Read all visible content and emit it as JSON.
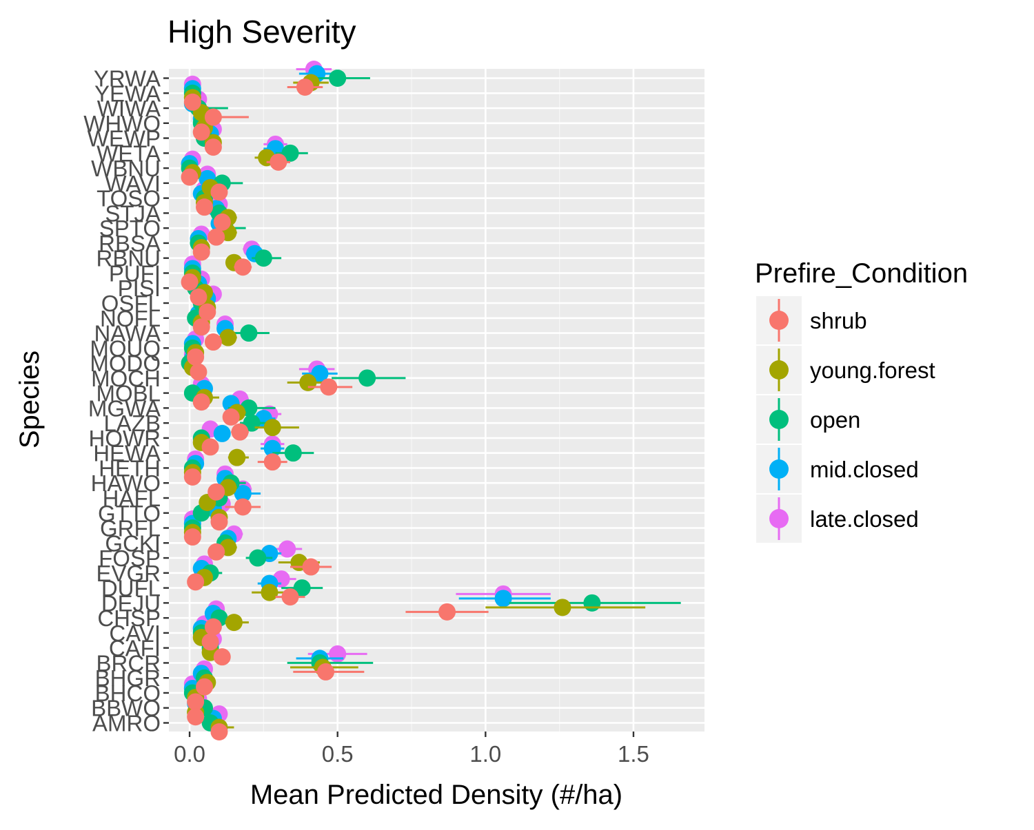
{
  "chart_data": {
    "type": "scatter",
    "title": "High Severity",
    "xlabel": "Mean Predicted Density (#/ha)",
    "ylabel": "Species",
    "xlim": [
      -0.07,
      1.74
    ],
    "x_ticks": [
      0.0,
      0.5,
      1.0,
      1.5
    ],
    "x_tick_labels": [
      "0.0",
      "0.5",
      "1.0",
      "1.5"
    ],
    "grid": true,
    "legend": {
      "title": "Prefire_Condition",
      "position": "right"
    },
    "categories": [
      "YRWA",
      "YEWA",
      "WIWA",
      "WHWO",
      "WEWP",
      "WETA",
      "WBNU",
      "WAVI",
      "TOSO",
      "STJA",
      "SPTO",
      "RBSA",
      "RBNU",
      "PUFI",
      "PISI",
      "OSFL",
      "NOFL",
      "NAWA",
      "MOUQ",
      "MODO",
      "MOCH",
      "MOBL",
      "MGWA",
      "LAZB",
      "HOWR",
      "HEWA",
      "HETH",
      "HAWO",
      "HAFL",
      "GTTO",
      "GRFL",
      "GCKI",
      "FOSP",
      "EVGR",
      "DUFL",
      "DEJU",
      "CHSP",
      "CAVI",
      "CAFI",
      "BRCR",
      "BHGR",
      "BHCO",
      "BBWO",
      "AMRO"
    ],
    "series": [
      {
        "name": "late.closed",
        "color": "#E76BF3",
        "values": [
          0.42,
          0.01,
          0.03,
          0.05,
          0.08,
          0.29,
          0.01,
          0.06,
          0.05,
          0.1,
          0.11,
          0.04,
          0.21,
          0.01,
          0.04,
          0.08,
          0.04,
          0.12,
          0.02,
          0.01,
          0.43,
          0.04,
          0.17,
          0.27,
          0.07,
          0.28,
          0.02,
          0.12,
          0.18,
          0.11,
          0.01,
          0.15,
          0.33,
          0.05,
          0.31,
          1.06,
          0.09,
          0.05,
          0.08,
          0.5,
          0.05,
          0.01,
          0.03,
          0.1
        ],
        "lower": [
          0.36,
          0.0,
          0.02,
          0.04,
          0.07,
          0.25,
          0.0,
          0.05,
          0.04,
          0.08,
          0.09,
          0.03,
          0.18,
          0.0,
          0.03,
          0.07,
          0.03,
          0.1,
          0.01,
          0.0,
          0.37,
          0.03,
          0.14,
          0.23,
          0.06,
          0.24,
          0.01,
          0.1,
          0.15,
          0.09,
          0.0,
          0.12,
          0.28,
          0.04,
          0.26,
          0.9,
          0.07,
          0.04,
          0.07,
          0.4,
          0.04,
          0.0,
          0.02,
          0.08
        ],
        "upper": [
          0.48,
          0.02,
          0.04,
          0.06,
          0.09,
          0.33,
          0.02,
          0.07,
          0.06,
          0.12,
          0.13,
          0.05,
          0.24,
          0.02,
          0.05,
          0.09,
          0.05,
          0.14,
          0.03,
          0.02,
          0.49,
          0.05,
          0.2,
          0.31,
          0.08,
          0.32,
          0.03,
          0.14,
          0.21,
          0.13,
          0.02,
          0.18,
          0.38,
          0.06,
          0.36,
          1.22,
          0.11,
          0.06,
          0.09,
          0.6,
          0.06,
          0.02,
          0.04,
          0.12
        ]
      },
      {
        "name": "mid.closed",
        "color": "#00B0F6",
        "values": [
          0.43,
          0.01,
          0.01,
          0.04,
          0.07,
          0.29,
          0.0,
          0.06,
          0.04,
          0.09,
          0.1,
          0.03,
          0.22,
          0.01,
          0.03,
          0.06,
          0.03,
          0.12,
          0.01,
          0.01,
          0.44,
          0.05,
          0.14,
          0.25,
          0.11,
          0.28,
          0.02,
          0.12,
          0.18,
          0.08,
          0.01,
          0.13,
          0.27,
          0.04,
          0.27,
          1.06,
          0.08,
          0.04,
          0.07,
          0.44,
          0.04,
          0.01,
          0.02,
          0.08
        ],
        "lower": [
          0.37,
          0.0,
          0.0,
          0.03,
          0.06,
          0.25,
          0.0,
          0.05,
          0.03,
          0.07,
          0.08,
          0.02,
          0.19,
          0.0,
          0.02,
          0.05,
          0.02,
          0.1,
          0.0,
          0.0,
          0.38,
          0.04,
          0.12,
          0.21,
          0.09,
          0.24,
          0.01,
          0.1,
          0.15,
          0.07,
          0.0,
          0.11,
          0.23,
          0.03,
          0.23,
          0.91,
          0.07,
          0.03,
          0.06,
          0.36,
          0.03,
          0.0,
          0.01,
          0.07
        ],
        "upper": [
          0.49,
          0.02,
          0.02,
          0.05,
          0.08,
          0.33,
          0.01,
          0.07,
          0.05,
          0.11,
          0.12,
          0.04,
          0.25,
          0.02,
          0.04,
          0.07,
          0.04,
          0.14,
          0.02,
          0.02,
          0.5,
          0.06,
          0.16,
          0.29,
          0.13,
          0.32,
          0.03,
          0.14,
          0.24,
          0.09,
          0.02,
          0.15,
          0.31,
          0.05,
          0.31,
          1.22,
          0.09,
          0.05,
          0.08,
          0.52,
          0.05,
          0.02,
          0.03,
          0.09
        ]
      },
      {
        "name": "open",
        "color": "#00BF7D",
        "values": [
          0.5,
          0.01,
          0.03,
          0.04,
          0.05,
          0.34,
          0.0,
          0.11,
          0.05,
          0.1,
          0.12,
          0.03,
          0.25,
          0.01,
          0.02,
          0.04,
          0.02,
          0.2,
          0.01,
          0.0,
          0.6,
          0.01,
          0.2,
          0.21,
          0.04,
          0.35,
          0.01,
          0.14,
          0.1,
          0.04,
          0.01,
          0.12,
          0.23,
          0.07,
          0.38,
          1.36,
          0.1,
          0.04,
          0.07,
          0.44,
          0.05,
          0.01,
          0.05,
          0.07
        ],
        "lower": [
          0.41,
          0.0,
          0.02,
          0.03,
          0.04,
          0.29,
          0.0,
          0.09,
          0.04,
          0.08,
          0.1,
          0.02,
          0.21,
          0.0,
          0.01,
          0.03,
          0.01,
          0.15,
          0.0,
          0.0,
          0.48,
          0.0,
          0.13,
          0.17,
          0.03,
          0.28,
          0.0,
          0.11,
          0.08,
          0.03,
          0.0,
          0.1,
          0.19,
          0.05,
          0.31,
          1.08,
          0.08,
          0.03,
          0.06,
          0.33,
          0.04,
          0.0,
          0.04,
          0.06
        ],
        "upper": [
          0.61,
          0.02,
          0.13,
          0.05,
          0.06,
          0.4,
          0.01,
          0.18,
          0.07,
          0.12,
          0.19,
          0.04,
          0.31,
          0.02,
          0.03,
          0.05,
          0.03,
          0.27,
          0.02,
          0.01,
          0.73,
          0.02,
          0.29,
          0.26,
          0.05,
          0.42,
          0.02,
          0.19,
          0.12,
          0.05,
          0.02,
          0.15,
          0.28,
          0.11,
          0.45,
          1.66,
          0.12,
          0.05,
          0.08,
          0.62,
          0.06,
          0.02,
          0.07,
          0.09
        ]
      },
      {
        "name": "young.forest",
        "color": "#A3A500",
        "values": [
          0.41,
          0.01,
          0.04,
          0.05,
          0.08,
          0.26,
          0.01,
          0.07,
          0.05,
          0.13,
          0.13,
          0.04,
          0.15,
          0.01,
          0.05,
          0.06,
          0.04,
          0.13,
          0.02,
          0.01,
          0.4,
          0.05,
          0.16,
          0.28,
          0.04,
          0.16,
          0.01,
          0.13,
          0.06,
          0.1,
          0.01,
          0.13,
          0.37,
          0.05,
          0.27,
          1.26,
          0.15,
          0.04,
          0.07,
          0.45,
          0.06,
          0.02,
          0.02,
          0.1
        ],
        "lower": [
          0.35,
          0.0,
          0.03,
          0.04,
          0.07,
          0.22,
          0.0,
          0.06,
          0.04,
          0.11,
          0.11,
          0.03,
          0.13,
          0.0,
          0.04,
          0.05,
          0.03,
          0.11,
          0.01,
          0.0,
          0.33,
          0.04,
          0.13,
          0.22,
          0.03,
          0.13,
          0.0,
          0.11,
          0.05,
          0.08,
          0.0,
          0.11,
          0.3,
          0.04,
          0.21,
          1.0,
          0.12,
          0.03,
          0.06,
          0.34,
          0.05,
          0.01,
          0.01,
          0.08
        ],
        "upper": [
          0.47,
          0.02,
          0.05,
          0.06,
          0.09,
          0.3,
          0.02,
          0.08,
          0.06,
          0.16,
          0.16,
          0.05,
          0.19,
          0.02,
          0.07,
          0.07,
          0.05,
          0.16,
          0.03,
          0.02,
          0.48,
          0.1,
          0.19,
          0.37,
          0.05,
          0.2,
          0.02,
          0.16,
          0.07,
          0.12,
          0.02,
          0.16,
          0.44,
          0.06,
          0.34,
          1.54,
          0.2,
          0.05,
          0.08,
          0.57,
          0.07,
          0.03,
          0.03,
          0.15
        ]
      },
      {
        "name": "shrub",
        "color": "#F8766D",
        "values": [
          0.39,
          0.01,
          0.08,
          0.04,
          0.08,
          0.3,
          0.0,
          0.1,
          0.05,
          0.11,
          0.09,
          0.04,
          0.18,
          0.0,
          0.03,
          0.06,
          0.04,
          0.08,
          0.02,
          0.03,
          0.47,
          0.04,
          0.14,
          0.17,
          0.07,
          0.28,
          0.01,
          0.09,
          0.18,
          0.1,
          0.01,
          0.09,
          0.41,
          0.02,
          0.34,
          0.87,
          0.08,
          0.07,
          0.11,
          0.46,
          0.05,
          0.02,
          0.02,
          0.1
        ],
        "lower": [
          0.33,
          0.0,
          0.06,
          0.03,
          0.07,
          0.26,
          0.0,
          0.08,
          0.04,
          0.09,
          0.08,
          0.03,
          0.15,
          0.0,
          0.02,
          0.05,
          0.03,
          0.06,
          0.01,
          0.02,
          0.4,
          0.03,
          0.12,
          0.14,
          0.06,
          0.23,
          0.0,
          0.08,
          0.12,
          0.09,
          0.0,
          0.08,
          0.34,
          0.01,
          0.29,
          0.73,
          0.07,
          0.06,
          0.09,
          0.35,
          0.04,
          0.01,
          0.01,
          0.09
        ],
        "upper": [
          0.45,
          0.02,
          0.2,
          0.05,
          0.09,
          0.34,
          0.01,
          0.12,
          0.06,
          0.13,
          0.1,
          0.05,
          0.21,
          0.01,
          0.04,
          0.07,
          0.05,
          0.1,
          0.03,
          0.04,
          0.55,
          0.05,
          0.16,
          0.2,
          0.08,
          0.33,
          0.02,
          0.1,
          0.24,
          0.11,
          0.02,
          0.1,
          0.48,
          0.03,
          0.39,
          1.01,
          0.09,
          0.08,
          0.13,
          0.59,
          0.06,
          0.03,
          0.03,
          0.11
        ]
      }
    ],
    "legend_order": [
      "shrub",
      "young.forest",
      "open",
      "mid.closed",
      "late.closed"
    ]
  }
}
